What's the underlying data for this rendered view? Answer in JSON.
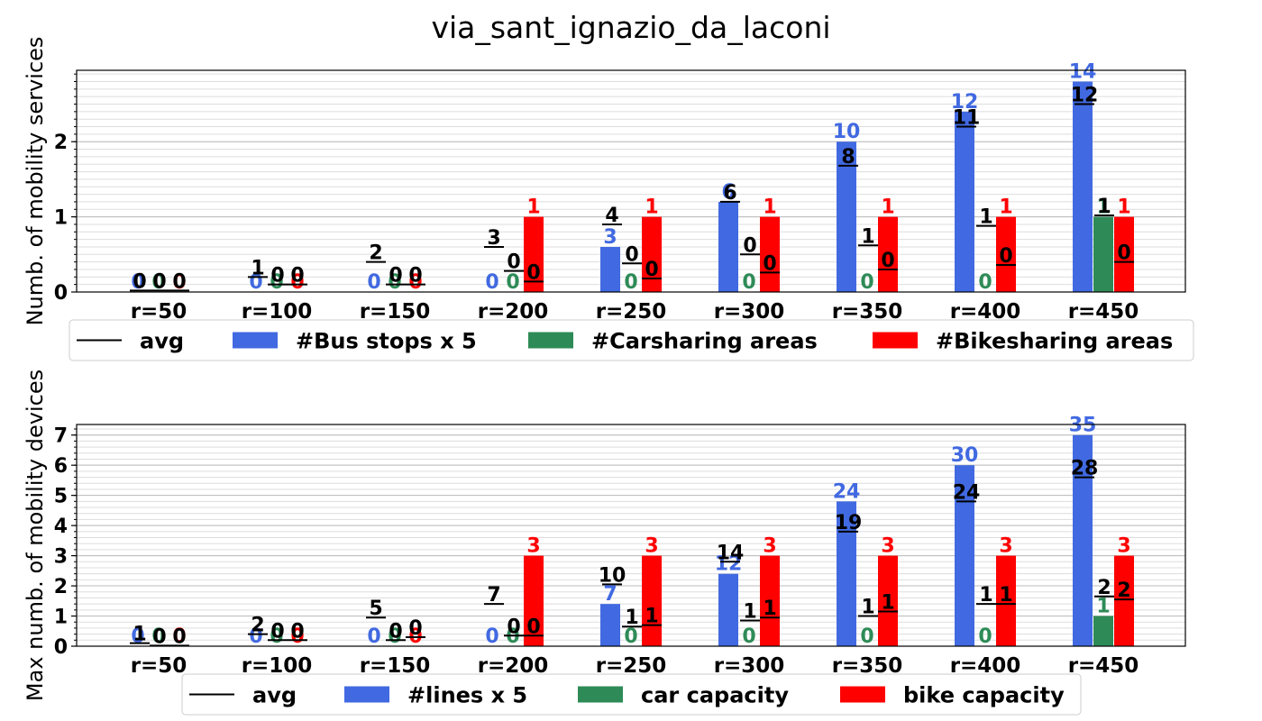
{
  "title": "via_sant_ignazio_da_laconi",
  "colors": {
    "bus": "#4169e1",
    "car": "#2e8b57",
    "bike": "#ff0000",
    "avg": "#000000"
  },
  "chart_data": [
    {
      "type": "bar",
      "ylabel": "Numb. of mobility services",
      "ylim": [
        0,
        2.95
      ],
      "yticks": [
        0,
        1,
        2
      ],
      "grid": true,
      "legend_position": "bottom",
      "categories": [
        "r=50",
        "r=100",
        "r=150",
        "r=200",
        "r=250",
        "r=300",
        "r=350",
        "r=400",
        "r=450"
      ],
      "series": [
        {
          "name": "#Bus stops x 5",
          "key": "bus",
          "values": [
            0,
            0,
            0,
            0,
            0.6,
            1.2,
            2.0,
            2.4,
            2.8
          ],
          "labels": [
            "0",
            "0",
            "0",
            "0",
            "3",
            "6",
            "10",
            "12",
            "14"
          ]
        },
        {
          "name": "#Carsharing areas",
          "key": "car",
          "values": [
            0,
            0,
            0,
            0,
            0,
            0,
            0,
            0,
            1
          ],
          "labels": [
            "0",
            "0",
            "0",
            "0",
            "0",
            "0",
            "0",
            "0",
            "1"
          ]
        },
        {
          "name": "#Bikesharing areas",
          "key": "bike",
          "values": [
            0,
            0,
            0,
            1,
            1,
            1,
            1,
            1,
            1
          ],
          "labels": [
            "0",
            "0",
            "0",
            "1",
            "1",
            "1",
            "1",
            "1",
            "1"
          ]
        }
      ],
      "avg": [
        {
          "name": "avg",
          "key": "bus",
          "values": [
            0.02,
            0.2,
            0.4,
            0.6,
            0.9,
            1.2,
            1.68,
            2.2,
            2.5
          ],
          "labels": [
            "0",
            "1",
            "2",
            "3",
            "4",
            "6",
            "8",
            "11",
            "12"
          ]
        },
        {
          "name": "avg",
          "key": "car",
          "values": [
            0.02,
            0.1,
            0.1,
            0.28,
            0.38,
            0.5,
            0.62,
            0.88,
            1.02
          ],
          "labels": [
            "0",
            "0",
            "0",
            "0",
            "0",
            "0",
            "1",
            "1",
            "1"
          ]
        },
        {
          "name": "avg",
          "key": "bike",
          "values": [
            0.02,
            0.1,
            0.1,
            0.14,
            0.18,
            0.26,
            0.3,
            0.36,
            0.4
          ],
          "labels": [
            "0",
            "0",
            "0",
            "0",
            "0",
            "0",
            "0",
            "0",
            "0"
          ]
        }
      ],
      "legend": [
        "avg",
        "#Bus stops x 5",
        "#Carsharing areas",
        "#Bikesharing areas"
      ]
    },
    {
      "type": "bar",
      "ylabel": "Max numb. of mobility devices",
      "ylim": [
        0,
        7.35
      ],
      "yticks": [
        0,
        1,
        2,
        3,
        4,
        5,
        6,
        7
      ],
      "grid": true,
      "legend_position": "bottom",
      "categories": [
        "r=50",
        "r=100",
        "r=150",
        "r=200",
        "r=250",
        "r=300",
        "r=350",
        "r=400",
        "r=450"
      ],
      "series": [
        {
          "name": "#lines x 5",
          "key": "bus",
          "values": [
            0,
            0,
            0,
            0,
            1.4,
            2.4,
            4.8,
            6.0,
            7.0
          ],
          "labels": [
            "0",
            "0",
            "0",
            "0",
            "7",
            "12",
            "24",
            "30",
            "35"
          ]
        },
        {
          "name": "car capacity",
          "key": "car",
          "values": [
            0,
            0,
            0,
            0,
            0,
            0,
            0,
            0,
            1
          ],
          "labels": [
            "0",
            "0",
            "0",
            "0",
            "0",
            "0",
            "0",
            "0",
            "1"
          ]
        },
        {
          "name": "bike capacity",
          "key": "bike",
          "values": [
            0,
            0,
            0,
            3,
            3,
            3,
            3,
            3,
            3
          ],
          "labels": [
            "0",
            "0",
            "0",
            "3",
            "3",
            "3",
            "3",
            "3",
            "3"
          ]
        }
      ],
      "avg": [
        {
          "name": "avg",
          "key": "bus",
          "values": [
            0.1,
            0.4,
            0.95,
            1.4,
            2.05,
            2.8,
            3.8,
            4.8,
            5.6
          ],
          "labels": [
            "1",
            "2",
            "5",
            "7",
            "10",
            "14",
            "19",
            "24",
            "28"
          ]
        },
        {
          "name": "avg",
          "key": "car",
          "values": [
            0.02,
            0.2,
            0.2,
            0.35,
            0.65,
            0.85,
            1.0,
            1.4,
            1.65
          ],
          "labels": [
            "0",
            "0",
            "0",
            "0",
            "1",
            "1",
            "1",
            "1",
            "2"
          ]
        },
        {
          "name": "avg",
          "key": "bike",
          "values": [
            0.02,
            0.2,
            0.3,
            0.35,
            0.7,
            0.95,
            1.15,
            1.4,
            1.55
          ],
          "labels": [
            "0",
            "0",
            "0",
            "0",
            "1",
            "1",
            "1",
            "1",
            "2"
          ]
        }
      ],
      "legend": [
        "avg",
        "#lines x 5",
        "car capacity",
        "bike capacity"
      ]
    }
  ]
}
